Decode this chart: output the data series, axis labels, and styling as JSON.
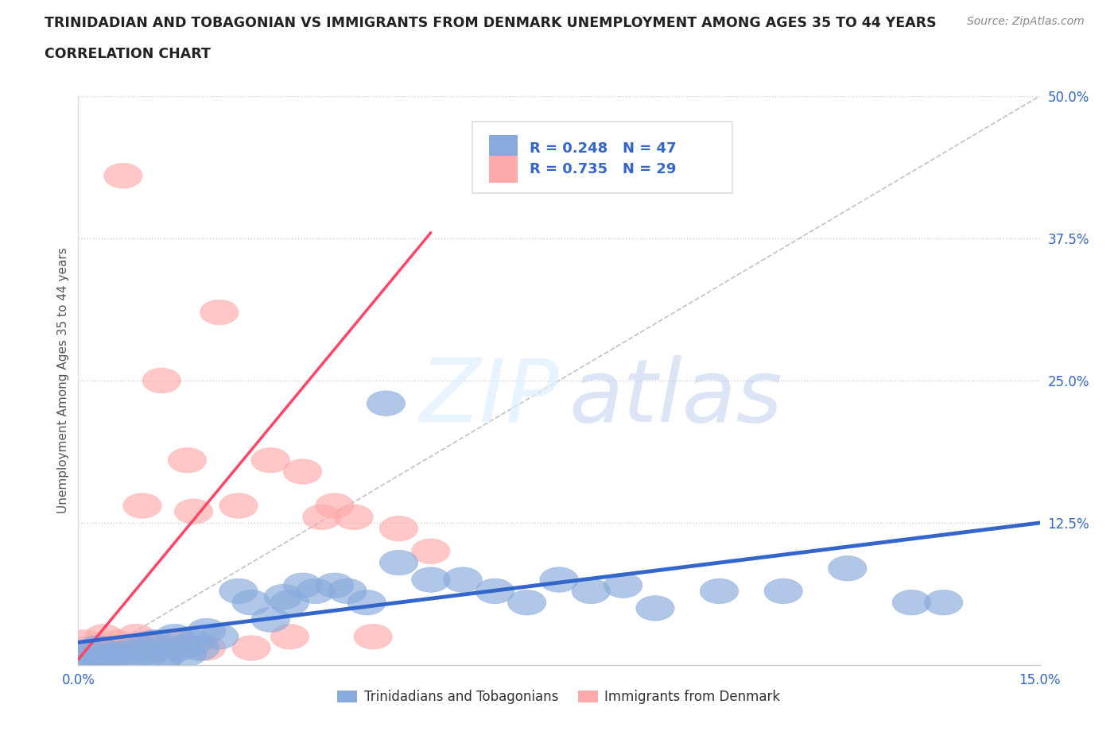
{
  "title_line1": "TRINIDADIAN AND TOBAGONIAN VS IMMIGRANTS FROM DENMARK UNEMPLOYMENT AMONG AGES 35 TO 44 YEARS",
  "title_line2": "CORRELATION CHART",
  "source_text": "Source: ZipAtlas.com",
  "ylabel": "Unemployment Among Ages 35 to 44 years",
  "xlim": [
    0.0,
    0.15
  ],
  "ylim": [
    0.0,
    0.5
  ],
  "ytick_vals": [
    0.0,
    0.125,
    0.25,
    0.375,
    0.5
  ],
  "ytick_labels": [
    "",
    "12.5%",
    "25.0%",
    "37.5%",
    "50.0%"
  ],
  "xtick_vals": [
    0.0,
    0.05,
    0.1,
    0.15
  ],
  "xtick_labels": [
    "0.0%",
    "",
    "",
    "15.0%"
  ],
  "blue_color": "#88AADD",
  "pink_color": "#FFAAAA",
  "blue_line_color": "#3366CC",
  "pink_line_color": "#FF4466",
  "ref_line_color": "#BBBBBB",
  "legend_R1": "R = 0.248",
  "legend_N1": "N = 47",
  "legend_R2": "R = 0.735",
  "legend_N2": "N = 29",
  "blue_label": "Trinidadians and Tobagonians",
  "pink_label": "Immigrants from Denmark",
  "background_color": "#FFFFFF",
  "grid_color": "#CCCCCC",
  "title_color": "#222222",
  "axis_label_color": "#555555",
  "tick_label_color": "#3366CC",
  "blue_x": [
    0.001,
    0.002,
    0.003,
    0.003,
    0.004,
    0.005,
    0.006,
    0.007,
    0.008,
    0.009,
    0.01,
    0.011,
    0.012,
    0.013,
    0.014,
    0.015,
    0.016,
    0.017,
    0.018,
    0.019,
    0.02,
    0.022,
    0.025,
    0.027,
    0.03,
    0.032,
    0.033,
    0.035,
    0.037,
    0.04,
    0.042,
    0.045,
    0.048,
    0.05,
    0.055,
    0.06,
    0.065,
    0.07,
    0.075,
    0.08,
    0.085,
    0.09,
    0.1,
    0.11,
    0.12,
    0.13,
    0.135
  ],
  "blue_y": [
    0.005,
    0.01,
    0.005,
    0.015,
    0.005,
    0.008,
    0.01,
    0.005,
    0.012,
    0.008,
    0.015,
    0.01,
    0.02,
    0.005,
    0.01,
    0.025,
    0.015,
    0.01,
    0.02,
    0.015,
    0.03,
    0.025,
    0.065,
    0.055,
    0.04,
    0.06,
    0.055,
    0.07,
    0.065,
    0.07,
    0.065,
    0.055,
    0.23,
    0.09,
    0.075,
    0.075,
    0.065,
    0.055,
    0.075,
    0.065,
    0.07,
    0.05,
    0.065,
    0.065,
    0.085,
    0.055,
    0.055
  ],
  "pink_x": [
    0.001,
    0.002,
    0.003,
    0.004,
    0.005,
    0.006,
    0.007,
    0.008,
    0.009,
    0.01,
    0.011,
    0.012,
    0.013,
    0.015,
    0.017,
    0.018,
    0.02,
    0.022,
    0.025,
    0.027,
    0.03,
    0.033,
    0.035,
    0.038,
    0.04,
    0.043,
    0.046,
    0.05,
    0.055
  ],
  "pink_y": [
    0.02,
    0.015,
    0.01,
    0.025,
    0.015,
    0.02,
    0.43,
    0.015,
    0.025,
    0.14,
    0.02,
    0.015,
    0.25,
    0.02,
    0.18,
    0.135,
    0.015,
    0.31,
    0.14,
    0.015,
    0.18,
    0.025,
    0.17,
    0.13,
    0.14,
    0.13,
    0.025,
    0.12,
    0.1
  ],
  "blue_trend": [
    0.0,
    0.15,
    0.02,
    0.125
  ],
  "pink_trend": [
    0.0,
    0.055,
    0.005,
    0.38
  ],
  "ref_line": [
    0.0,
    0.15,
    0.0,
    0.5
  ]
}
